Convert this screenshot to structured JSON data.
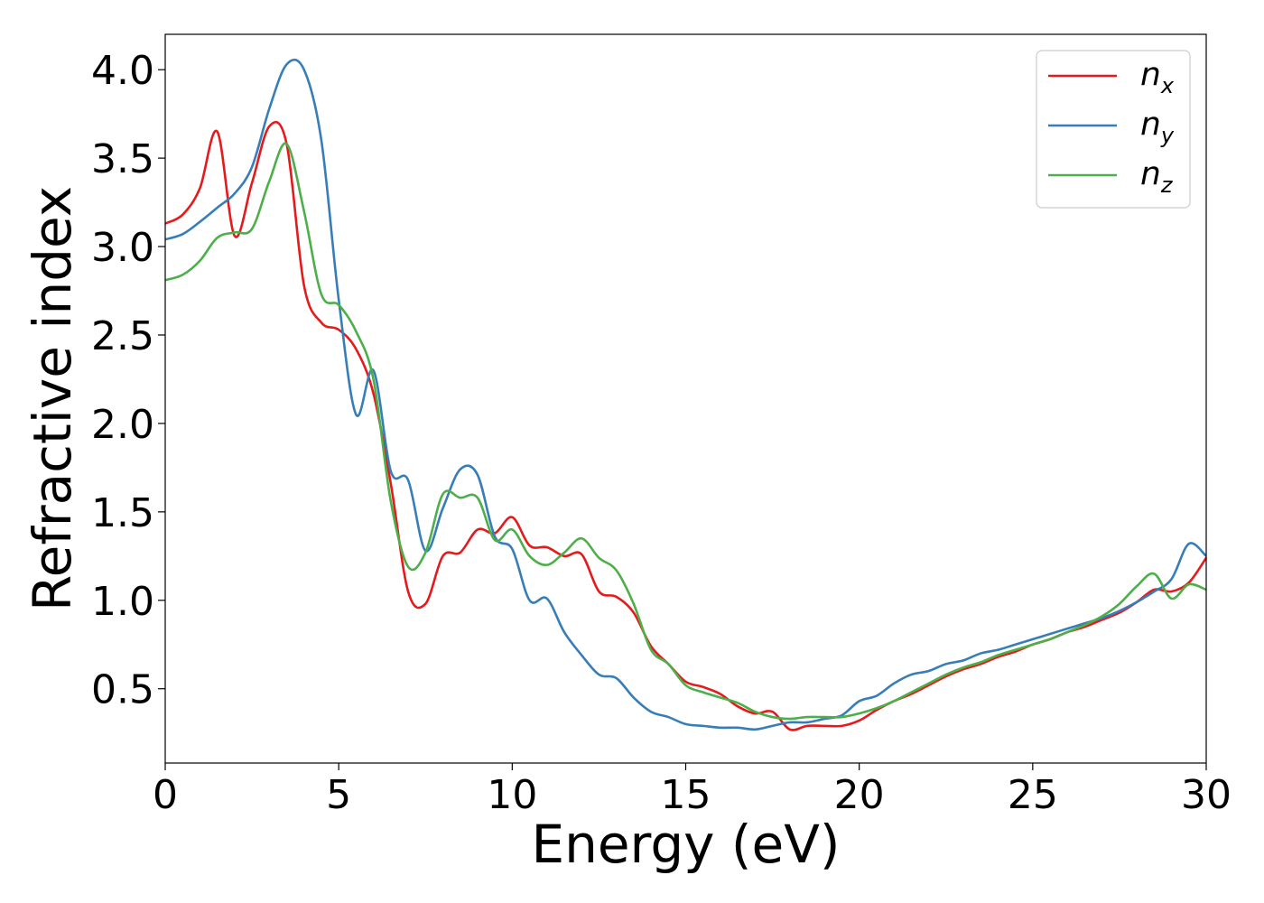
{
  "chart_data": {
    "type": "line",
    "xlabel": "Energy (eV)",
    "ylabel": "Refractive index",
    "xlim": [
      0,
      30
    ],
    "ylim": [
      0.08,
      4.2
    ],
    "xticks": [
      "0",
      "5",
      "10",
      "15",
      "20",
      "25",
      "30"
    ],
    "yticks": [
      "0.5",
      "1.0",
      "1.5",
      "2.0",
      "2.5",
      "3.0",
      "3.5",
      "4.0"
    ],
    "grid": false,
    "legend_position": "top-right",
    "x": [
      0,
      0.5,
      1,
      1.5,
      2,
      2.5,
      3,
      3.5,
      4,
      4.5,
      5,
      5.5,
      6,
      6.5,
      7,
      7.5,
      8,
      8.5,
      9,
      9.5,
      10,
      10.5,
      11,
      11.5,
      12,
      12.5,
      13,
      13.5,
      14,
      14.5,
      15,
      15.5,
      16,
      16.5,
      17,
      17.5,
      18,
      18.5,
      19,
      19.5,
      20,
      20.5,
      21,
      21.5,
      22,
      22.5,
      23,
      23.5,
      24,
      24.5,
      25,
      25.5,
      26,
      26.5,
      27,
      27.5,
      28,
      28.5,
      29,
      29.5,
      30
    ],
    "series": [
      {
        "name": "x",
        "color": "#e41a1c",
        "values": [
          3.13,
          3.18,
          3.33,
          3.65,
          3.06,
          3.36,
          3.68,
          3.58,
          2.78,
          2.57,
          2.53,
          2.42,
          2.17,
          1.66,
          1.05,
          0.98,
          1.25,
          1.27,
          1.4,
          1.38,
          1.47,
          1.31,
          1.3,
          1.25,
          1.26,
          1.05,
          1.02,
          0.93,
          0.74,
          0.64,
          0.54,
          0.51,
          0.47,
          0.4,
          0.36,
          0.37,
          0.27,
          0.29,
          0.29,
          0.29,
          0.32,
          0.38,
          0.43,
          0.47,
          0.52,
          0.57,
          0.61,
          0.64,
          0.68,
          0.71,
          0.75,
          0.78,
          0.82,
          0.85,
          0.89,
          0.93,
          0.99,
          1.06,
          1.05,
          1.1,
          1.24
        ]
      },
      {
        "name": "y",
        "color": "#377eb8",
        "values": [
          3.04,
          3.07,
          3.14,
          3.22,
          3.3,
          3.45,
          3.78,
          4.03,
          4.0,
          3.6,
          2.7,
          2.05,
          2.3,
          1.73,
          1.68,
          1.28,
          1.52,
          1.74,
          1.71,
          1.36,
          1.29,
          1.0,
          1.01,
          0.82,
          0.69,
          0.58,
          0.56,
          0.45,
          0.37,
          0.34,
          0.3,
          0.29,
          0.28,
          0.28,
          0.27,
          0.29,
          0.31,
          0.31,
          0.33,
          0.35,
          0.43,
          0.46,
          0.53,
          0.58,
          0.6,
          0.64,
          0.66,
          0.7,
          0.72,
          0.75,
          0.78,
          0.81,
          0.84,
          0.87,
          0.9,
          0.94,
          0.99,
          1.05,
          1.12,
          1.32,
          1.25
        ]
      },
      {
        "name": "z",
        "color": "#4daf4a",
        "values": [
          2.81,
          2.84,
          2.92,
          3.05,
          3.08,
          3.1,
          3.37,
          3.58,
          3.2,
          2.73,
          2.67,
          2.52,
          2.25,
          1.56,
          1.19,
          1.27,
          1.6,
          1.58,
          1.58,
          1.34,
          1.4,
          1.25,
          1.2,
          1.27,
          1.35,
          1.24,
          1.17,
          0.98,
          0.72,
          0.64,
          0.52,
          0.48,
          0.45,
          0.42,
          0.37,
          0.34,
          0.33,
          0.34,
          0.34,
          0.34,
          0.36,
          0.39,
          0.43,
          0.48,
          0.53,
          0.58,
          0.62,
          0.65,
          0.69,
          0.72,
          0.75,
          0.78,
          0.82,
          0.86,
          0.91,
          0.98,
          1.08,
          1.15,
          1.01,
          1.09,
          1.06
        ]
      }
    ]
  },
  "legend": {
    "items": [
      {
        "base": "n",
        "sub": "x"
      },
      {
        "base": "n",
        "sub": "y"
      },
      {
        "base": "n",
        "sub": "z"
      }
    ]
  }
}
